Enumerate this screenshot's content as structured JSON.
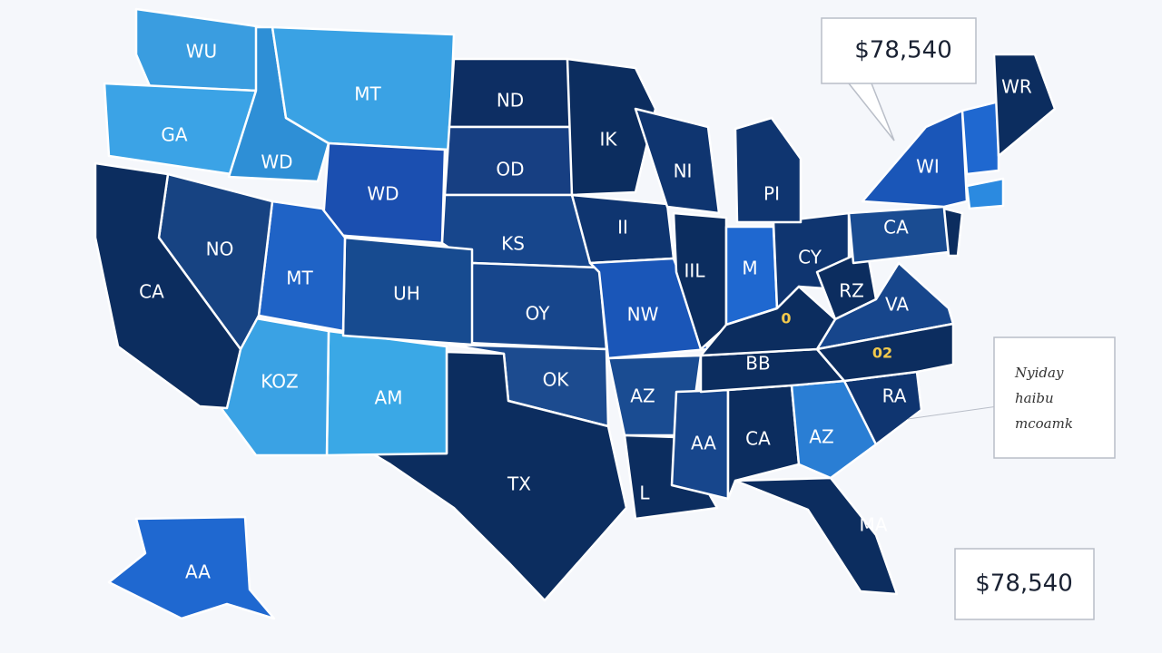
{
  "map": {
    "states": [
      {
        "label": "WU"
      },
      {
        "label": "GA"
      },
      {
        "label": "WD"
      },
      {
        "label": "MT"
      },
      {
        "label": "WD"
      },
      {
        "label": "ND"
      },
      {
        "label": "OD"
      },
      {
        "label": "KS"
      },
      {
        "label": "OY"
      },
      {
        "label": "OK"
      },
      {
        "label": "TX"
      },
      {
        "label": "AM"
      },
      {
        "label": "KOZ"
      },
      {
        "label": "UH"
      },
      {
        "label": "MT"
      },
      {
        "label": "NO"
      },
      {
        "label": "CA"
      },
      {
        "label": "IK"
      },
      {
        "label": "II"
      },
      {
        "label": "NW"
      },
      {
        "label": "AZ"
      },
      {
        "label": "L"
      },
      {
        "label": "AA"
      },
      {
        "label": "CA"
      },
      {
        "label": "AZ"
      },
      {
        "label": "MA"
      },
      {
        "label": "RA"
      },
      {
        "label": "BB"
      },
      {
        "label": "IIL"
      },
      {
        "label": "M"
      },
      {
        "label": "CY"
      },
      {
        "label": "RZ"
      },
      {
        "label": "VA"
      },
      {
        "label": "NI"
      },
      {
        "label": "PI"
      },
      {
        "label": "CA"
      },
      {
        "label": "WI"
      },
      {
        "label": "WR"
      },
      {
        "label": "AA"
      }
    ],
    "markers": [
      "0",
      "02"
    ],
    "callouts": [
      "$78,540",
      "$78,540"
    ],
    "note": [
      "Nyiday",
      "haibu",
      "mcoamk"
    ]
  }
}
